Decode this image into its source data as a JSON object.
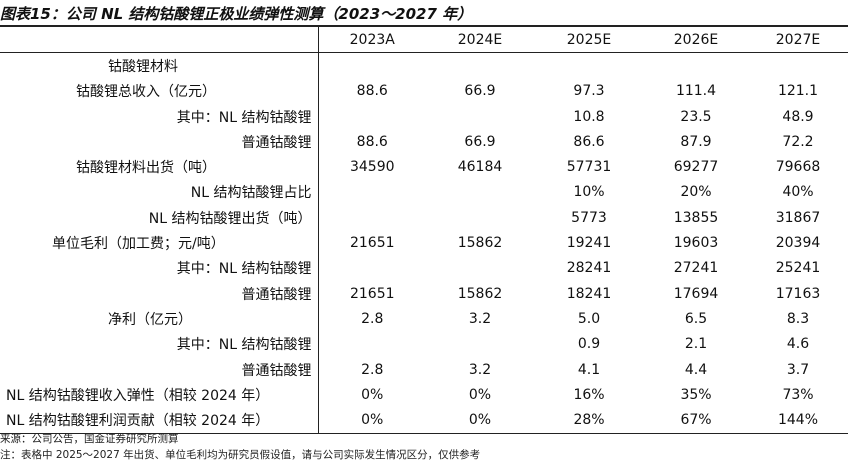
{
  "title": "图表15：公司 NL 结构钴酸锂正极业绩弹性测算（2023～2027 年）",
  "columns": [
    "",
    "2023A",
    "2024E",
    "2025E",
    "2026E",
    "2027E"
  ],
  "rows": [
    {
      "label": "钴酸锂材料",
      "values": [
        "",
        "",
        "",
        "",
        ""
      ]
    },
    {
      "label": "钴酸锂总收入（亿元）",
      "values": [
        "88.6",
        "66.9",
        "97.3",
        "111.4",
        "121.1"
      ]
    },
    {
      "label": "其中：NL 结构钴酸锂",
      "values": [
        "",
        "",
        "10.8",
        "23.5",
        "48.9"
      ]
    },
    {
      "label": "普通钴酸锂",
      "values": [
        "88.6",
        "66.9",
        "86.6",
        "87.9",
        "72.2"
      ]
    },
    {
      "label": "钴酸锂材料出货（吨）",
      "values": [
        "34590",
        "46184",
        "57731",
        "69277",
        "79668"
      ]
    },
    {
      "label": "NL 结构钴酸锂占比",
      "values": [
        "",
        "",
        "10%",
        "20%",
        "40%"
      ]
    },
    {
      "label": "NL 结构钴酸锂出货（吨）",
      "values": [
        "",
        "",
        "5773",
        "13855",
        "31867"
      ]
    },
    {
      "label": "单位毛利（加工费；元/吨）",
      "values": [
        "21651",
        "15862",
        "19241",
        "19603",
        "20394"
      ]
    },
    {
      "label": "其中：NL 结构钴酸锂",
      "values": [
        "",
        "",
        "28241",
        "27241",
        "25241"
      ]
    },
    {
      "label": "普通钴酸锂",
      "values": [
        "21651",
        "15862",
        "18241",
        "17694",
        "17163"
      ]
    },
    {
      "label": "净利（亿元）",
      "values": [
        "2.8",
        "3.2",
        "5.0",
        "6.5",
        "8.3"
      ]
    },
    {
      "label": "其中：NL 结构钴酸锂",
      "values": [
        "",
        "",
        "0.9",
        "2.1",
        "4.6"
      ]
    },
    {
      "label": "普通钴酸锂",
      "values": [
        "2.8",
        "3.2",
        "4.1",
        "4.4",
        "3.7"
      ]
    },
    {
      "label": "NL 结构钴酸锂收入弹性（相较 2024 年）",
      "values": [
        "0%",
        "0%",
        "16%",
        "35%",
        "73%"
      ]
    },
    {
      "label": "NL 结构钴酸锂利润贡献（相较 2024 年）",
      "values": [
        "0%",
        "0%",
        "28%",
        "67%",
        "144%"
      ]
    }
  ],
  "notes": {
    "source": "来源：公司公告，国金证券研究所测算",
    "remark": "注：表格中 2025～2027 年出货、单位毛利均为研究员假设值，请与公司实际发生情况区分，仅供参考"
  }
}
